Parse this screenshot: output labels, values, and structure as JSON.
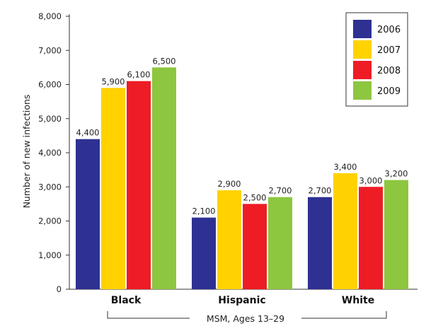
{
  "chart_data": {
    "type": "bar",
    "categories": [
      "Black",
      "Hispanic",
      "White"
    ],
    "series": [
      {
        "name": "2006",
        "values": [
          4400,
          2100,
          2700
        ],
        "labels": [
          "4,400",
          "2,100",
          "2,700"
        ]
      },
      {
        "name": "2007",
        "values": [
          5900,
          2900,
          3400
        ],
        "labels": [
          "5,900",
          "2,900",
          "3,400"
        ]
      },
      {
        "name": "2008",
        "values": [
          6100,
          2500,
          3000
        ],
        "labels": [
          "6,100",
          "2,500",
          "3,000"
        ]
      },
      {
        "name": "2009",
        "values": [
          6500,
          2700,
          3200
        ],
        "labels": [
          "6,500",
          "2,700",
          "3,200"
        ]
      }
    ],
    "colors": [
      "#2e3192",
      "#ffd200",
      "#ee1c25",
      "#8dc63f"
    ],
    "ylabel": "Number of new infections",
    "xlabel": "MSM, Ages 13–29",
    "ylim": [
      0,
      8000
    ],
    "yticks": [
      0,
      1000,
      2000,
      3000,
      4000,
      5000,
      6000,
      7000,
      8000
    ],
    "ytick_labels": [
      "0",
      "1,000",
      "2,000",
      "3,000",
      "4,000",
      "5,000",
      "6,000",
      "7,000",
      "8,000"
    ],
    "legend_position": "top-right",
    "grid": false
  }
}
